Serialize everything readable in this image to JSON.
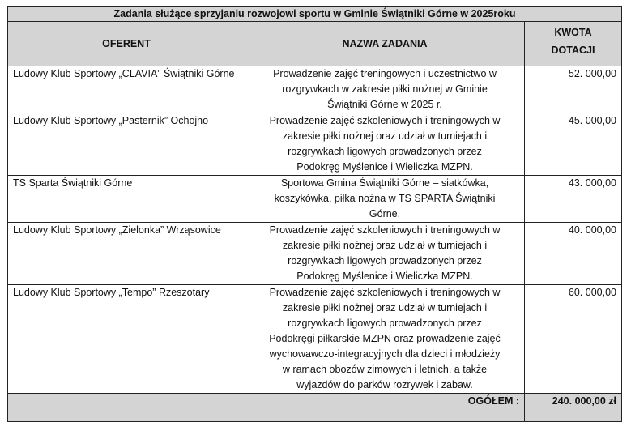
{
  "title": "Zadania służące sprzyjaniu rozwojowi sportu w Gminie Świątniki Górne w 2025roku",
  "headers": {
    "oferent": "OFERENT",
    "zadanie": "NAZWA ZADANIA",
    "kwota_line1": "KWOTA",
    "kwota_line2": "DOTACJI"
  },
  "rows": [
    {
      "oferent": "Ludowy Klub Sportowy „CLAVIA” Świątniki Górne",
      "zadanie": "Prowadzenie zajęć treningowych i uczestnictwo w\nrozgrywkach w zakresie piłki nożnej w Gminie\nŚwiątniki Górne w 2025 r.",
      "kwota": "52. 000,00"
    },
    {
      "oferent": "Ludowy Klub Sportowy „Pasternik” Ochojno",
      "zadanie": "Prowadzenie zajęć szkoleniowych i treningowych w\nzakresie piłki nożnej oraz udział w turniejach i\nrozgrywkach ligowych prowadzonych przez\nPodokręg Myślenice i Wieliczka MZPN.",
      "kwota": "45. 000,00"
    },
    {
      "oferent": "TS Sparta Świątniki Górne",
      "zadanie": "Sportowa Gmina Świątniki Górne – siatkówka,\nkoszykówka, piłka nożna w TS SPARTA Świątniki\nGórne.",
      "kwota": "43. 000,00"
    },
    {
      "oferent": "Ludowy Klub Sportowy „Zielonka” Wrząsowice",
      "zadanie": "Prowadzenie  zajęć szkoleniowych i treningowych w\nzakresie piłki nożnej oraz udział w turniejach i\nrozgrywkach ligowych prowadzonych przez\nPodokręg Myślenice i Wieliczka MZPN.",
      "kwota": "40. 000,00"
    },
    {
      "oferent": "Ludowy Klub Sportowy „Tempo” Rzeszotary",
      "zadanie": "Prowadzenie  zajęć szkoleniowych i treningowych w\nzakresie piłki nożnej oraz udział w turniejach i\nrozgrywkach ligowych prowadzonych przez\nPodokręgi piłkarskie MZPN  oraz prowadzenie  zajęć\nwychowawczo-integracyjnych dla dzieci i młodzieży\nw ramach obozów zimowych i letnich, a także\nwyjazdów do parków rozrywek  i zabaw.",
      "kwota": "60. 000,00"
    }
  ],
  "total": {
    "label": "OGÓŁEM :",
    "value": "240. 000,00 zł"
  }
}
